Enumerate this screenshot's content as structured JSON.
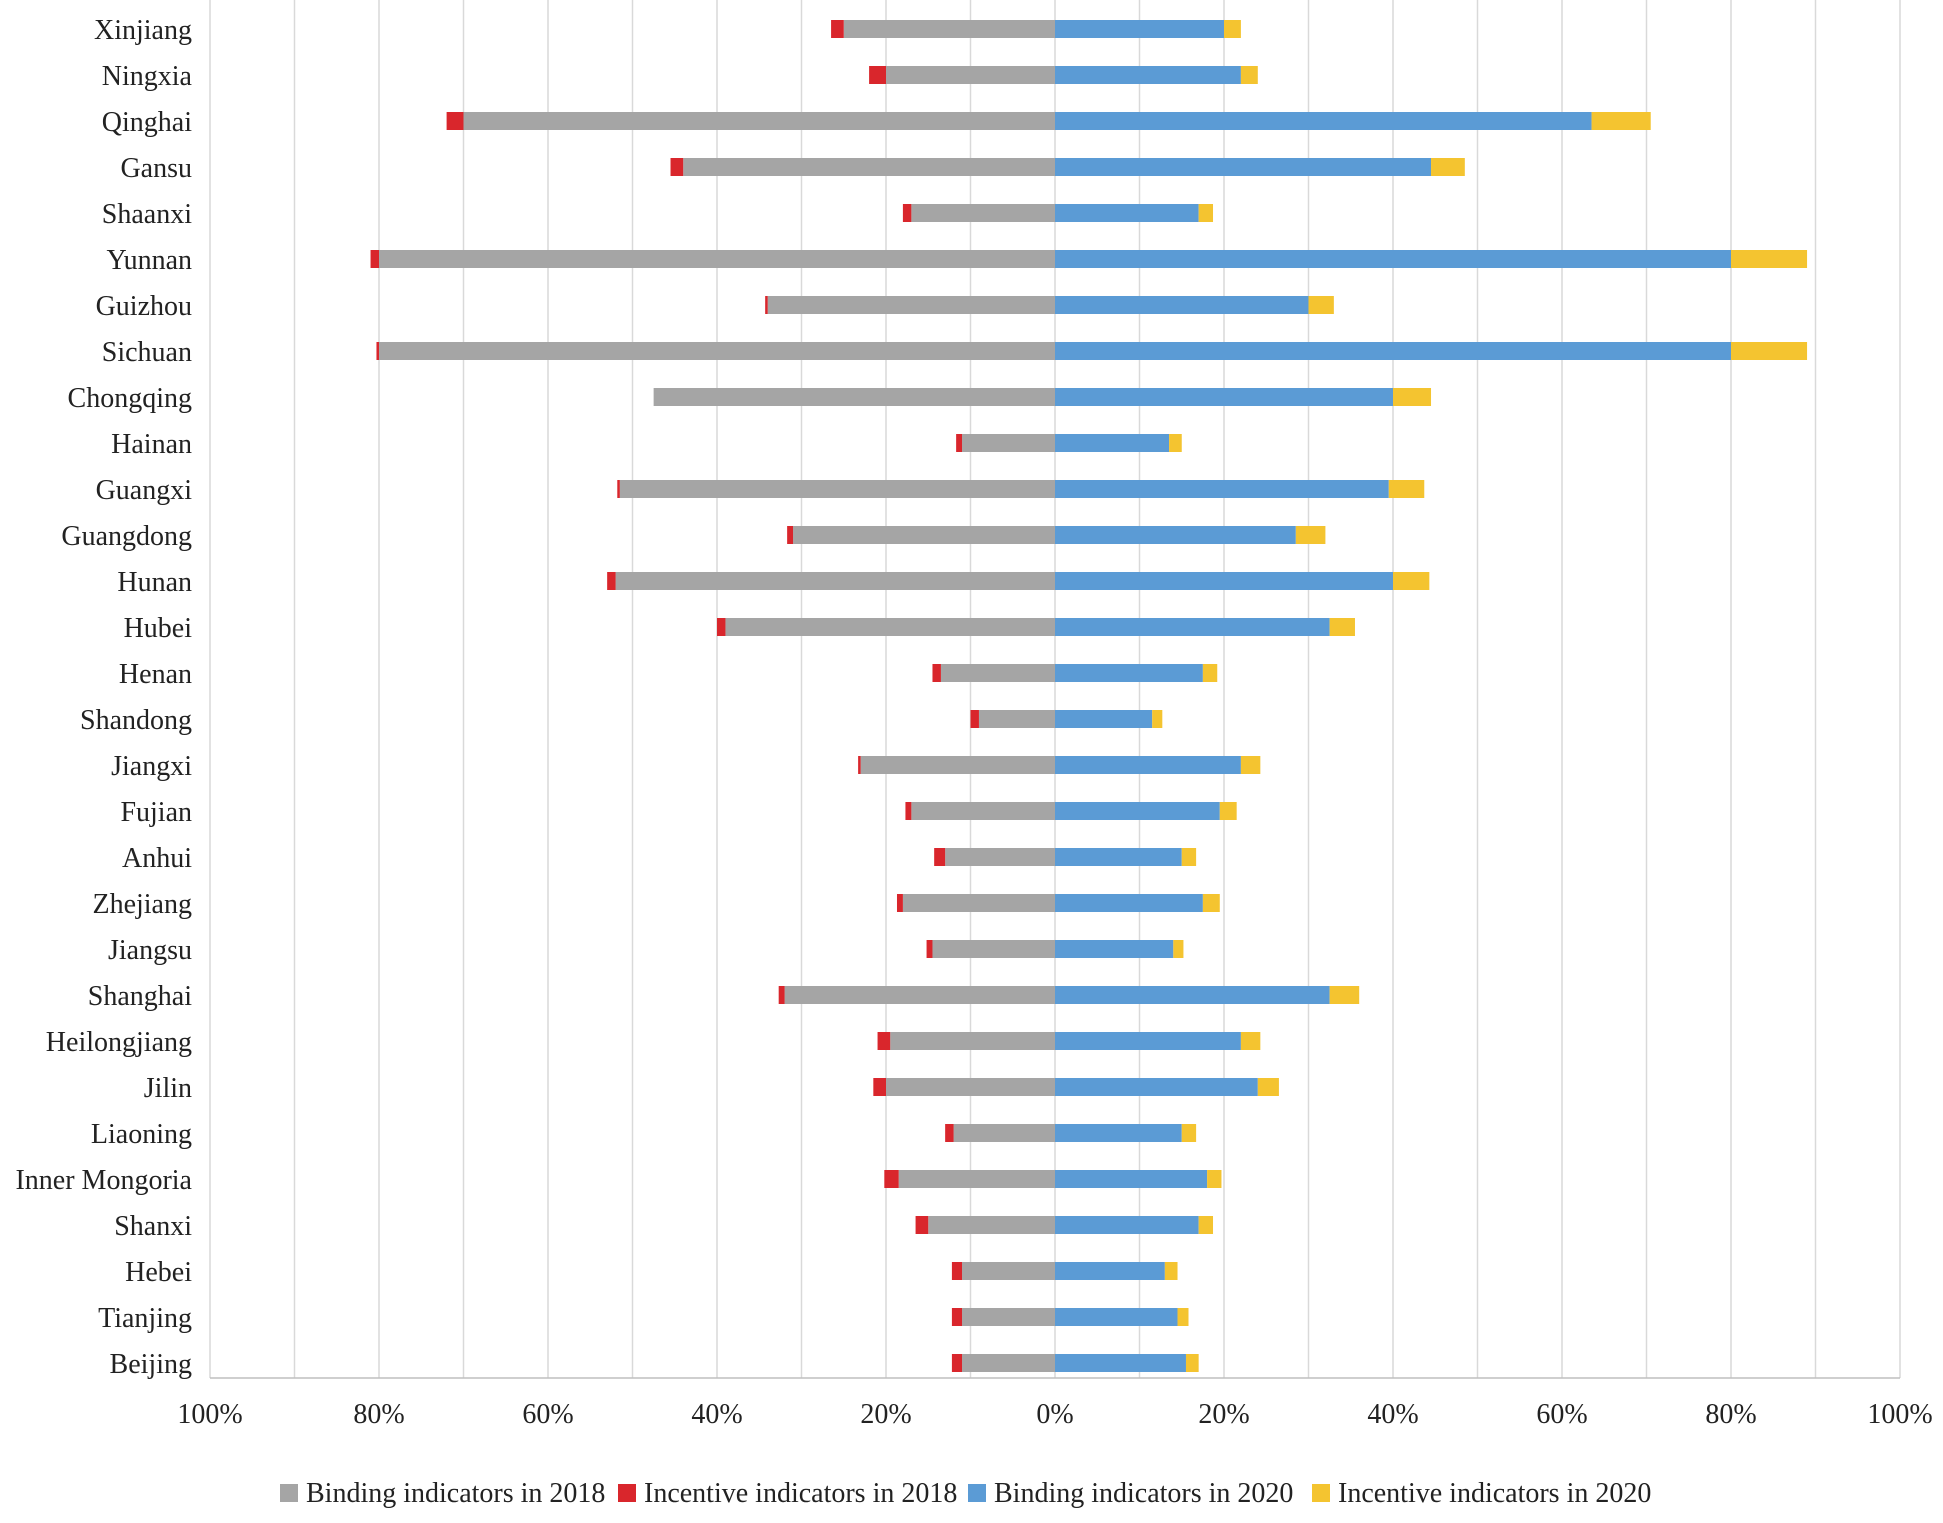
{
  "chart_data": {
    "type": "bar",
    "orientation": "horizontal-diverging-stacked",
    "categories": [
      "Xinjiang",
      "Ningxia",
      "Qinghai",
      "Gansu",
      "Shaanxi",
      "Yunnan",
      "Guizhou",
      "Sichuan",
      "Chongqing",
      "Hainan",
      "Guangxi",
      "Guangdong",
      "Hunan",
      "Hubei",
      "Henan",
      "Shandong",
      "Jiangxi",
      "Fujian",
      "Anhui",
      "Zhejiang",
      "Jiangsu",
      "Shanghai",
      "Heilongjiang",
      "Jilin",
      "Liaoning",
      "Inner Mongoria",
      "Shanxi",
      "Hebei",
      "Tianjing",
      "Beijing"
    ],
    "series": [
      {
        "name": "Binding indicators in 2018",
        "side": "left",
        "color": "#a5a5a5",
        "values": [
          25,
          20,
          70,
          44,
          17,
          80,
          34,
          80,
          47.5,
          11,
          51.5,
          31,
          52,
          39,
          13.5,
          9,
          23,
          17,
          13,
          18,
          14.5,
          32,
          19.5,
          20,
          12,
          18.5,
          15,
          11,
          11,
          11
        ]
      },
      {
        "name": "Incentive indicators in 2018",
        "side": "left",
        "color": "#d9262c",
        "values": [
          1.5,
          2,
          2,
          1.5,
          1,
          1,
          0.3,
          0.3,
          0,
          0.7,
          0.3,
          0.7,
          1,
          1,
          1,
          1,
          0.3,
          0.7,
          1.3,
          0.7,
          0.7,
          0.7,
          1.5,
          1.5,
          1,
          1.7,
          1.5,
          1.2,
          1.2,
          1.2
        ]
      },
      {
        "name": "Binding indicators in 2020",
        "side": "right",
        "color": "#5b9bd5",
        "values": [
          20,
          22,
          63.5,
          44.5,
          17,
          80,
          30,
          80,
          40,
          13.5,
          39.5,
          28.5,
          40,
          32.5,
          17.5,
          11.5,
          22,
          19.5,
          15,
          17.5,
          14,
          32.5,
          22,
          24,
          15,
          18,
          17,
          13,
          14.5,
          15.5
        ]
      },
      {
        "name": "Incentive indicators in 2020",
        "side": "right",
        "color": "#f4c430",
        "values": [
          2,
          2,
          7,
          4,
          1.7,
          9,
          3,
          9,
          4.5,
          1.5,
          4.2,
          3.5,
          4.3,
          3,
          1.7,
          1.2,
          2.3,
          2,
          1.7,
          2,
          1.2,
          3.5,
          2.3,
          2.5,
          1.7,
          1.7,
          1.7,
          1.5,
          1.3,
          1.5
        ]
      }
    ],
    "x_ticks": [
      "100%",
      "80%",
      "60%",
      "40%",
      "20%",
      "0%",
      "20%",
      "40%",
      "60%",
      "80%",
      "100%"
    ],
    "xlim": [
      -100,
      100
    ],
    "grid": true,
    "legend_position": "bottom"
  }
}
